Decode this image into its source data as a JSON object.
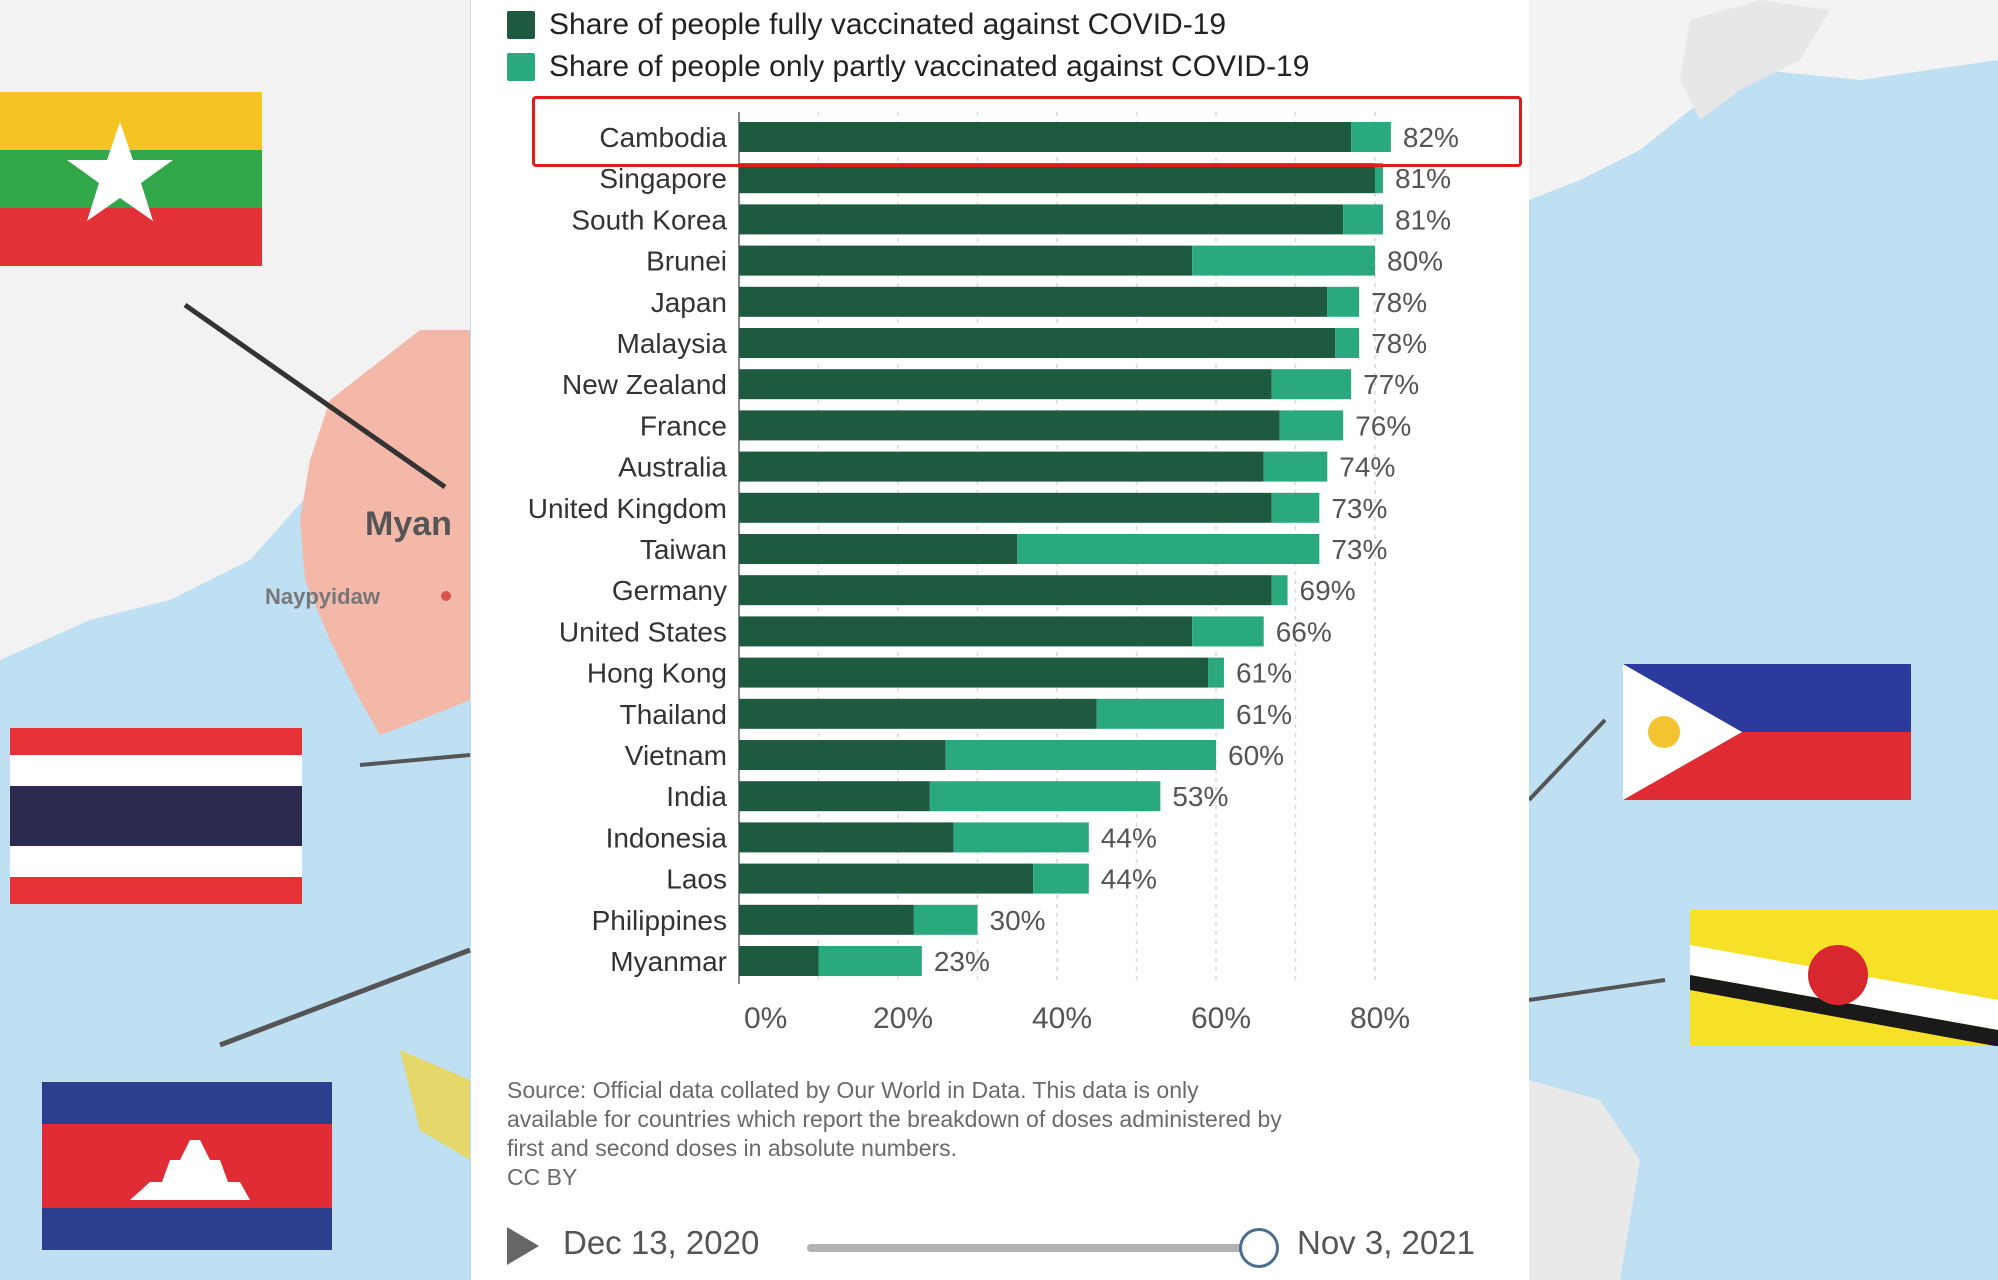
{
  "background_map": {
    "left_labels": [
      "Myan",
      "Naypyidaw"
    ]
  },
  "legend": [
    {
      "label": "Share of people fully vaccinated against COVID-19",
      "color": "#1e5a40"
    },
    {
      "label": "Share of people only partly vaccinated against COVID-19",
      "color": "#2ba97e"
    }
  ],
  "chart_data": {
    "type": "bar",
    "orientation": "horizontal",
    "stacked": true,
    "categories": [
      "Cambodia",
      "Singapore",
      "South Korea",
      "Brunei",
      "Japan",
      "Malaysia",
      "New Zealand",
      "France",
      "Australia",
      "United Kingdom",
      "Taiwan",
      "Germany",
      "United States",
      "Hong Kong",
      "Thailand",
      "Vietnam",
      "India",
      "Indonesia",
      "Laos",
      "Philippines",
      "Myanmar"
    ],
    "series": [
      {
        "name": "Share of people fully vaccinated against COVID-19",
        "color": "#1e5a40",
        "values": [
          77,
          80,
          76,
          57,
          74,
          75,
          67,
          68,
          66,
          67,
          35,
          67,
          57,
          59,
          45,
          26,
          24,
          27,
          37,
          22,
          10
        ]
      },
      {
        "name": "Share of people only partly vaccinated against COVID-19",
        "color": "#2ba97e",
        "values": [
          5,
          1,
          5,
          23,
          4,
          3,
          10,
          8,
          8,
          6,
          38,
          2,
          9,
          2,
          16,
          34,
          29,
          17,
          7,
          8,
          13
        ]
      }
    ],
    "total_labels": [
      "82%",
      "81%",
      "81%",
      "80%",
      "78%",
      "78%",
      "77%",
      "76%",
      "74%",
      "73%",
      "73%",
      "69%",
      "66%",
      "61%",
      "61%",
      "60%",
      "53%",
      "44%",
      "44%",
      "30%",
      "23%"
    ],
    "x_ticks": [
      "0%",
      "20%",
      "40%",
      "60%",
      "80%"
    ],
    "xlim": [
      0,
      90
    ],
    "grid": true,
    "highlighted_category": "Cambodia"
  },
  "source_note": [
    "Source: Official data collated by Our World in Data. This data is only",
    "available for countries which report the breakdown of doses administered by",
    "first and second doses in absolute numbers.",
    "CC BY"
  ],
  "timeline": {
    "start_date": "Dec 13, 2020",
    "end_date": "Nov 3, 2021",
    "position": 1.0
  }
}
